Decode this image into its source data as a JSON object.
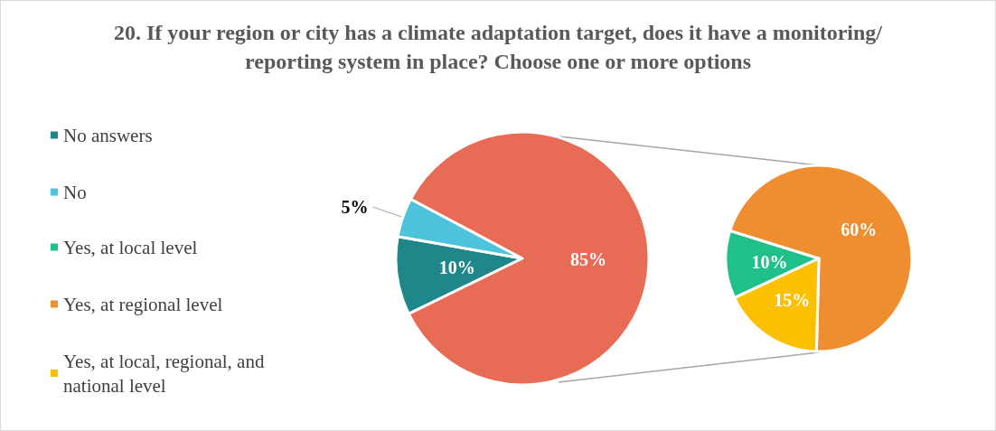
{
  "chart_data": [
    {
      "type": "pie",
      "title": "20. If your region or city has a climate adaptation target, does it have a monitoring/reporting system in place? Choose one or more options",
      "categories": [
        "No answers",
        "No",
        null
      ],
      "values": [
        10,
        5,
        85
      ],
      "colors": [
        "#1f868a",
        "#4dc3dc",
        "#e86b55"
      ],
      "value_labels": [
        "10%",
        "5%",
        "85%"
      ],
      "legend": "left"
    },
    {
      "type": "pie",
      "categories": [
        "Yes, at local level",
        "Yes, at regional level",
        "Yes, at local, regional, and national level"
      ],
      "values": [
        10,
        60,
        15
      ],
      "colors": [
        "#20c08a",
        "#ee8e31",
        "#fdc000"
      ],
      "value_labels": [
        "10%",
        "60%",
        "15%"
      ],
      "legend": "left"
    }
  ]
}
